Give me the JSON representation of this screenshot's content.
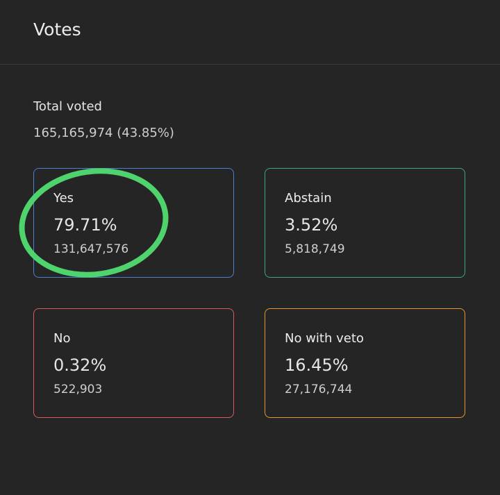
{
  "header": {
    "title": "Votes"
  },
  "total": {
    "label": "Total voted",
    "value": "165,165,974 (43.85%)"
  },
  "options": [
    {
      "label": "Yes",
      "percent": "79.71%",
      "count": "131,647,576"
    },
    {
      "label": "Abstain",
      "percent": "3.52%",
      "count": "5,818,749"
    },
    {
      "label": "No",
      "percent": "0.32%",
      "count": "522,903"
    },
    {
      "label": "No with veto",
      "percent": "16.45%",
      "count": "27,176,744"
    }
  ]
}
